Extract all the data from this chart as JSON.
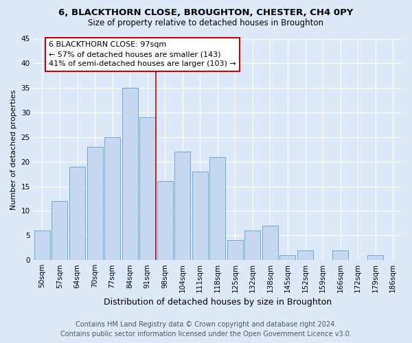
{
  "title1": "6, BLACKTHORN CLOSE, BROUGHTON, CHESTER, CH4 0PY",
  "title2": "Size of property relative to detached houses in Broughton",
  "xlabel": "Distribution of detached houses by size in Broughton",
  "ylabel": "Number of detached properties",
  "categories": [
    "50sqm",
    "57sqm",
    "64sqm",
    "70sqm",
    "77sqm",
    "84sqm",
    "91sqm",
    "98sqm",
    "104sqm",
    "111sqm",
    "118sqm",
    "125sqm",
    "132sqm",
    "138sqm",
    "145sqm",
    "152sqm",
    "159sqm",
    "166sqm",
    "172sqm",
    "179sqm",
    "186sqm"
  ],
  "values": [
    6,
    12,
    19,
    23,
    25,
    35,
    29,
    16,
    22,
    18,
    21,
    4,
    6,
    7,
    1,
    2,
    0,
    2,
    0,
    1,
    0
  ],
  "bar_color": "#c5d8f0",
  "bar_edge_color": "#6aaad4",
  "reference_line_color": "#cc0000",
  "annotation_line1": "6 BLACKTHORN CLOSE: 97sqm",
  "annotation_line2": "← 57% of detached houses are smaller (143)",
  "annotation_line3": "41% of semi-detached houses are larger (103) →",
  "annotation_box_color": "#ffffff",
  "annotation_box_edge_color": "#cc0000",
  "ylim": [
    0,
    45
  ],
  "yticks": [
    0,
    5,
    10,
    15,
    20,
    25,
    30,
    35,
    40,
    45
  ],
  "background_color": "#dde8f8",
  "plot_bg_color": "#dde8f8",
  "grid_color": "#ffffff",
  "footer1": "Contains HM Land Registry data © Crown copyright and database right 2024.",
  "footer2": "Contains public sector information licensed under the Open Government Licence v3.0.",
  "title1_fontsize": 9.5,
  "title2_fontsize": 8.5,
  "xlabel_fontsize": 9,
  "ylabel_fontsize": 8,
  "tick_fontsize": 7.5,
  "annotation_fontsize": 8,
  "footer_fontsize": 7
}
